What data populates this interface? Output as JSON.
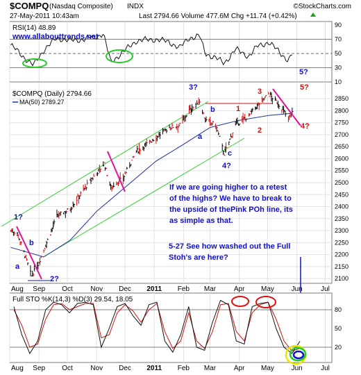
{
  "header": {
    "symbol": "$COMPQ",
    "name": "(Nasdaq Composite)",
    "exchange": "INDX",
    "brand": "©StockCharts.com",
    "timestamp": "27-May-2011 10:43am",
    "quote_line": "Last 2794.66   Volume 477.6M   Chg +11.74 (+0.42%)",
    "up_icon": "up-arrow-icon"
  },
  "colors": {
    "price_bars": "#000000",
    "ma_line": "#1c2f9e",
    "channel": "#33cc33",
    "pink": "#e0119a",
    "annot_blue": "#1010c8",
    "annot_red": "#d01010",
    "oval_green": "#22cc22",
    "oval_red": "#e01010",
    "oval_yellow": "#e8e800"
  },
  "chart_data": [
    {
      "type": "line",
      "panel": "rsi",
      "legend": "RSI(14) 48.89",
      "watermark": "www.allabouttrends.net",
      "ylim": [
        10,
        95
      ],
      "yticks": [
        10,
        30,
        50,
        70,
        90
      ],
      "reference_lines": [
        30,
        50,
        70
      ],
      "grid": true,
      "series": [
        {
          "name": "RSI(14)",
          "x": [
            "2010-08-02",
            "2010-08-16",
            "2010-08-26",
            "2010-09-06",
            "2010-09-20",
            "2010-10-04",
            "2010-10-18",
            "2010-11-01",
            "2010-11-08",
            "2010-11-16",
            "2010-11-29",
            "2010-12-13",
            "2011-01-03",
            "2011-01-17",
            "2011-01-28",
            "2011-02-07",
            "2011-02-18",
            "2011-02-24",
            "2011-03-07",
            "2011-03-16",
            "2011-03-28",
            "2011-04-11",
            "2011-04-20",
            "2011-05-02",
            "2011-05-12",
            "2011-05-23",
            "2011-05-27"
          ],
          "values": [
            62,
            45,
            33,
            55,
            72,
            68,
            70,
            74,
            78,
            38,
            52,
            68,
            70,
            66,
            58,
            72,
            75,
            50,
            44,
            36,
            56,
            46,
            60,
            66,
            54,
            40,
            48.89
          ]
        }
      ]
    },
    {
      "type": "bar",
      "panel": "price",
      "legend": "$COMPQ (Daily) 2794.66",
      "ma_legend": "MA(50) 2789.27",
      "ylim": [
        2080,
        2920
      ],
      "yticks": [
        2100,
        2150,
        2200,
        2250,
        2300,
        2350,
        2400,
        2450,
        2500,
        2550,
        2600,
        2650,
        2700,
        2750,
        2800,
        2850
      ],
      "grid": true,
      "x_ticks": [
        "Aug",
        "Sep",
        "Oct",
        "Nov",
        "Dec",
        "2011",
        "Feb",
        "Mar",
        "Apr",
        "May",
        "Jun",
        "Jul"
      ],
      "price_path": {
        "x": [
          "2010-08-02",
          "2010-08-09",
          "2010-08-16",
          "2010-08-24",
          "2010-08-31",
          "2010-09-07",
          "2010-09-20",
          "2010-10-04",
          "2010-10-18",
          "2010-11-01",
          "2010-11-09",
          "2010-11-16",
          "2010-11-29",
          "2010-12-13",
          "2011-01-03",
          "2011-01-17",
          "2011-01-28",
          "2011-02-07",
          "2011-02-18",
          "2011-02-24",
          "2011-03-07",
          "2011-03-16",
          "2011-03-28",
          "2011-04-11",
          "2011-04-20",
          "2011-05-02",
          "2011-05-12",
          "2011-05-23",
          "2011-05-27"
        ],
        "values": [
          2300,
          2290,
          2210,
          2110,
          2160,
          2230,
          2360,
          2390,
          2470,
          2540,
          2580,
          2480,
          2520,
          2630,
          2690,
          2730,
          2740,
          2800,
          2840,
          2760,
          2740,
          2620,
          2740,
          2780,
          2820,
          2870,
          2830,
          2770,
          2794.66
        ]
      },
      "ma50": {
        "x": [
          "2010-08-02",
          "2010-09-06",
          "2010-10-04",
          "2010-11-01",
          "2010-12-01",
          "2011-01-03",
          "2011-02-01",
          "2011-03-01",
          "2011-04-01",
          "2011-05-02",
          "2011-05-27"
        ],
        "values": [
          2230,
          2190,
          2260,
          2380,
          2480,
          2590,
          2660,
          2730,
          2760,
          2780,
          2789.27
        ]
      },
      "annotations": {
        "wave_labels": [
          {
            "text": "1?",
            "color": "blue"
          },
          {
            "text": "a",
            "color": "blue"
          },
          {
            "text": "b",
            "color": "blue"
          },
          {
            "text": "2?",
            "color": "blue"
          },
          {
            "text": "3?",
            "color": "blue"
          },
          {
            "text": "a",
            "color": "blue"
          },
          {
            "text": "b",
            "color": "blue"
          },
          {
            "text": "c",
            "color": "blue"
          },
          {
            "text": "4?",
            "color": "blue"
          },
          {
            "text": "1",
            "color": "red"
          },
          {
            "text": "2",
            "color": "red"
          },
          {
            "text": "3",
            "color": "red"
          },
          {
            "text": "4?",
            "color": "red"
          },
          {
            "text": "5?",
            "color": "red"
          },
          {
            "text": "5?",
            "color": "blue"
          }
        ],
        "comment_1": "If we are going higher to a retest of the highs? We have to break to the upside of thePink POh line, its as simple as that.",
        "comment_2": "5-27 See how washed out the Full Stoh's are here?"
      }
    },
    {
      "type": "line",
      "panel": "stochastic",
      "legend": "Full STO %K(14,3) %D(3) 29.54, 18.05",
      "ylim": [
        0,
        100
      ],
      "yticks": [
        20,
        50,
        80
      ],
      "reference_lines": [
        20,
        80
      ],
      "grid": true,
      "x_ticks": [
        "Aug",
        "Sep",
        "Oct",
        "Nov",
        "Dec",
        "2011",
        "Feb",
        "Mar",
        "Apr",
        "May",
        "Jun",
        "Jul"
      ],
      "series": [
        {
          "name": "%K",
          "values": [
            85,
            40,
            10,
            30,
            80,
            92,
            88,
            75,
            90,
            92,
            88,
            20,
            50,
            85,
            90,
            70,
            55,
            88,
            92,
            30,
            12,
            40,
            85,
            20,
            15,
            60,
            95,
            88,
            30,
            25,
            85,
            90,
            92,
            50,
            20,
            10,
            29.54
          ]
        },
        {
          "name": "%D",
          "values": [
            80,
            55,
            20,
            25,
            65,
            88,
            90,
            80,
            85,
            90,
            90,
            35,
            40,
            75,
            88,
            78,
            60,
            80,
            90,
            45,
            18,
            30,
            75,
            30,
            18,
            45,
            88,
            90,
            45,
            30,
            75,
            88,
            92,
            65,
            30,
            14,
            18.05
          ]
        }
      ]
    }
  ]
}
